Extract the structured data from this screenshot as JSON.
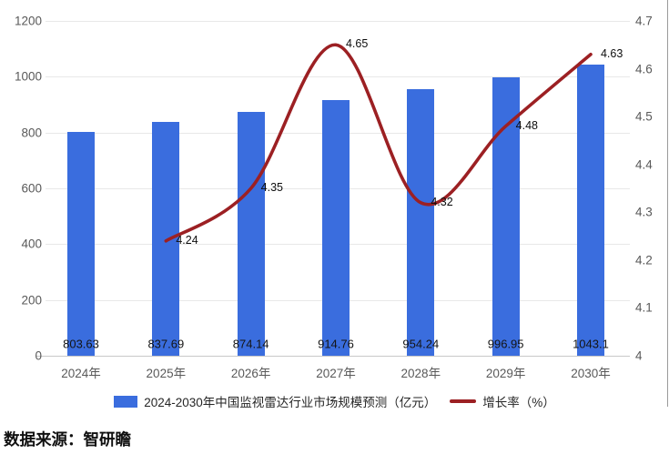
{
  "chart_data": {
    "type": "bar+line combo",
    "categories": [
      "2024年",
      "2025年",
      "2026年",
      "2027年",
      "2028年",
      "2029年",
      "2030年"
    ],
    "series": [
      {
        "name": "2024-2030年中国监视雷达行业市场规模预测（亿元）",
        "type": "bar",
        "axis": "left",
        "values": [
          803.63,
          837.69,
          874.14,
          914.76,
          954.24,
          996.95,
          1043.1
        ],
        "value_labels": [
          "803.63",
          "837.69",
          "874.14",
          "914.76",
          "954.24",
          "996.95",
          "1043.1"
        ]
      },
      {
        "name": "增长率（%）",
        "type": "line",
        "axis": "right",
        "values": [
          null,
          4.24,
          4.35,
          4.65,
          4.32,
          4.48,
          4.63
        ],
        "value_labels": [
          null,
          "4.24",
          "4.35",
          "4.65",
          "4.32",
          "4.48",
          "4.63"
        ]
      }
    ],
    "left_axis": {
      "min": 0,
      "max": 1200,
      "step": 200,
      "ticks": [
        "1200",
        "1000",
        "800",
        "600",
        "400",
        "200",
        "0"
      ]
    },
    "right_axis": {
      "min": 4,
      "max": 4.7,
      "step": 0.1,
      "ticks": [
        "4.7",
        "4.6",
        "4.5",
        "4.4",
        "4.3",
        "4.2",
        "4.1",
        "4"
      ]
    },
    "grid": true,
    "legend_position": "bottom-center",
    "title": ""
  },
  "colors": {
    "bar": "#3a6dde",
    "line": "#9c2023",
    "grid": "#e8e8e8",
    "baseline": "#c8c8c8",
    "axis_text": "#595959",
    "value_text": "#141414"
  },
  "source": "数据来源：智研瞻"
}
